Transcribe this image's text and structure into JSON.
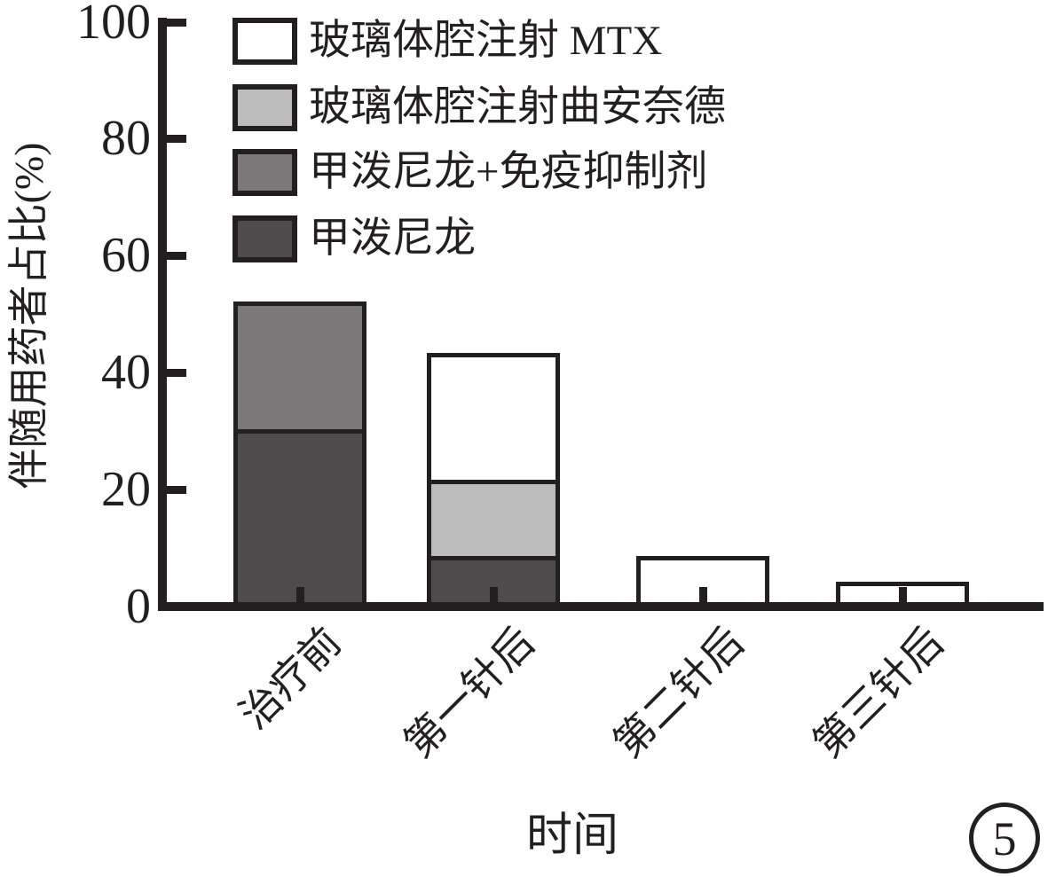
{
  "chart_data": {
    "type": "bar",
    "stacked": true,
    "categories": [
      "治疗前",
      "第一针后",
      "第二针后",
      "第三针后"
    ],
    "series": [
      {
        "name": "甲泼尼龙",
        "color": "#4d4b4c",
        "values": [
          30.4,
          8.7,
          0,
          0
        ]
      },
      {
        "name": "甲泼尼龙+免疫抑制剂",
        "color": "#7a7878",
        "values": [
          21.7,
          0,
          0,
          0
        ]
      },
      {
        "name": "玻璃体腔注射曲安奈德",
        "color": "#bcbcbc",
        "values": [
          0,
          13.0,
          0,
          0
        ]
      },
      {
        "name": "玻璃体腔注射 MTX",
        "color": "#ffffff",
        "values": [
          0,
          21.7,
          8.7,
          4.3
        ]
      }
    ],
    "stack_totals": [
      52.1,
      43.4,
      8.7,
      4.3
    ],
    "legend": [
      {
        "label": "玻璃体腔注射 MTX",
        "color": "#ffffff"
      },
      {
        "label": "玻璃体腔注射曲安奈德",
        "color": "#bcbcbc"
      },
      {
        "label": "甲泼尼龙+免疫抑制剂",
        "color": "#7a7878"
      },
      {
        "label": "甲泼尼龙",
        "color": "#4d4b4c"
      }
    ],
    "legend_position": "upper-left",
    "title": "",
    "xlabel": "时间",
    "ylabel": "伴随用药者占比(%)",
    "yticks": [
      0,
      20,
      40,
      60,
      80,
      100
    ],
    "ylim": [
      0,
      100
    ],
    "grid": false,
    "ink_color": "#231f20",
    "figure_number": "5"
  }
}
